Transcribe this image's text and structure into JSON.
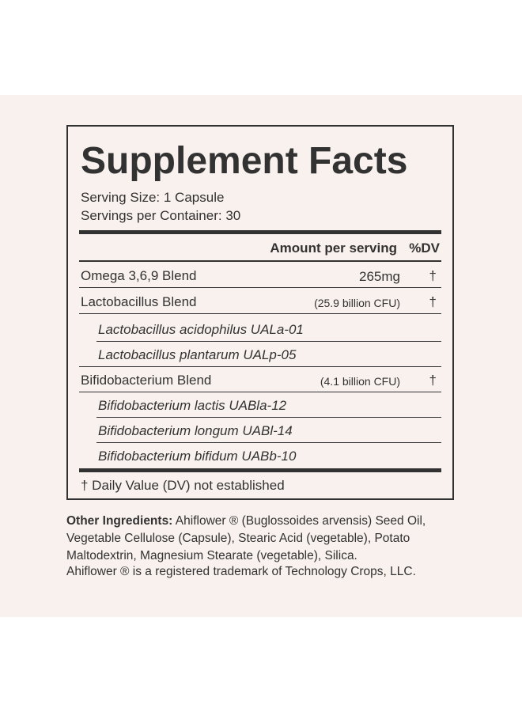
{
  "label": {
    "title": "Supplement Facts",
    "serving_size": "Serving Size: 1 Capsule",
    "servings_per_container": "Servings per Container: 30",
    "col_amount": "Amount per serving",
    "col_dv": "%DV",
    "rows": [
      {
        "name": "Omega 3,6,9 Blend",
        "amount": "265mg",
        "dv": "†"
      },
      {
        "name": "Lactobacillus Blend",
        "amount": "(25.9 billion CFU)",
        "dv": "†"
      },
      {
        "name": "Lactobacillus acidophilus UALa-01",
        "amount": "",
        "dv": ""
      },
      {
        "name": "Lactobacillus plantarum UALp-05",
        "amount": "",
        "dv": ""
      },
      {
        "name": "Bifidobacterium Blend",
        "amount": "(4.1 billion CFU)",
        "dv": "†"
      },
      {
        "name": "Bifidobacterium lactis UABla-12",
        "amount": "",
        "dv": ""
      },
      {
        "name": "Bifidobacterium longum UABl-14",
        "amount": "",
        "dv": ""
      },
      {
        "name": "Bifidobacterium bifidum UABb-10",
        "amount": "",
        "dv": ""
      }
    ],
    "footnote": "† Daily Value (DV) not established"
  },
  "other_ingredients": {
    "heading": "Other Ingredients:",
    "text": " Ahiflower ® (Buglossoides arvensis) Seed Oil, Vegetable Cellulose (Capsule), Stearic Acid (vegetable), Potato Maltodextrin, Magnesium Stearate (vegetable), Silica."
  },
  "trademark": "Ahiflower ® is a registered trademark of Technology Crops, LLC.",
  "colors": {
    "background": "#f8f1ee",
    "text": "#333232"
  }
}
